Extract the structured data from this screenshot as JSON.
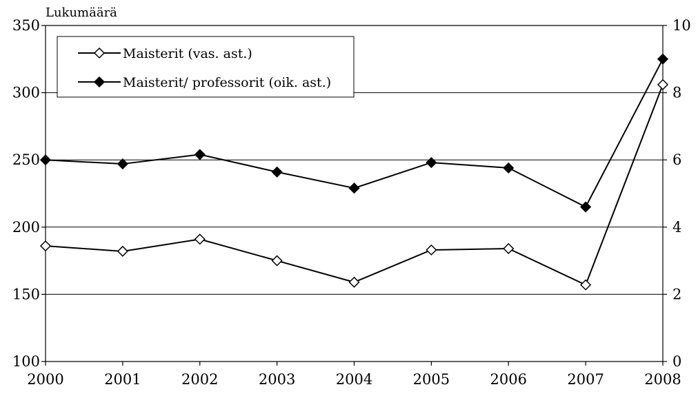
{
  "chart_data": {
    "type": "line",
    "ylabel_left": "Lukumäärä",
    "x": [
      "2000",
      "2001",
      "2002",
      "2003",
      "2004",
      "2005",
      "2006",
      "2007",
      "2008"
    ],
    "y_left": {
      "min": 100,
      "max": 350,
      "ticks": [
        100,
        150,
        200,
        250,
        300,
        350
      ]
    },
    "y_right": {
      "min": 0,
      "max": 10,
      "ticks": [
        0,
        2,
        4,
        6,
        8,
        10
      ]
    },
    "grid": "horizontal",
    "legend_position": "top-left",
    "series": [
      {
        "name": "Maisterit (vas. ast.)",
        "axis": "left",
        "marker": "open-diamond",
        "values": [
          186,
          182,
          191,
          175,
          159,
          183,
          184,
          157,
          306
        ]
      },
      {
        "name": "Maisterit/ professorit (oik. ast.)",
        "axis": "right",
        "marker": "filled-diamond",
        "values": [
          6.0,
          5.88,
          6.16,
          5.64,
          5.16,
          5.92,
          5.76,
          4.6,
          9.0
        ]
      }
    ]
  }
}
